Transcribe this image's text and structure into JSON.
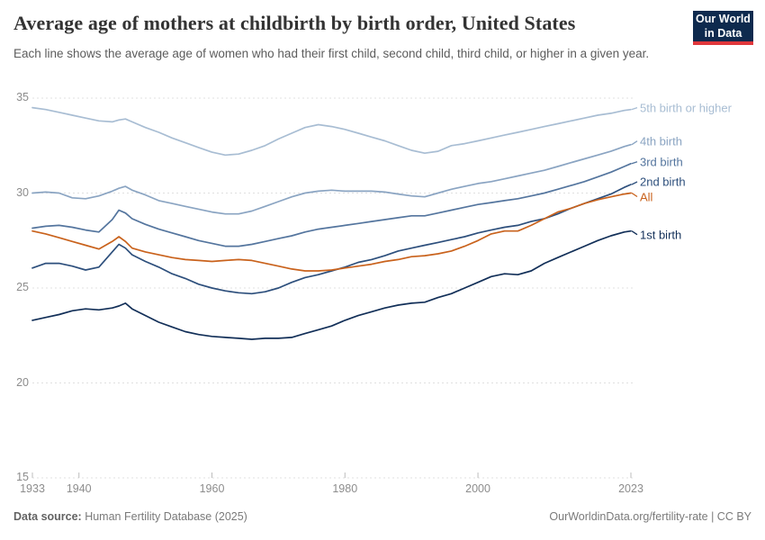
{
  "branding": {
    "logo_line1": "Our World",
    "logo_line2": "in Data"
  },
  "chart_data": {
    "type": "line",
    "title": "Average age of mothers at childbirth by birth order, United States",
    "subtitle": "Each line shows the average age of women who had their first child, second child, third child, or higher in a given year.",
    "xlabel": "",
    "ylabel": "",
    "x_range": [
      1933,
      2023
    ],
    "y_range": [
      15,
      35
    ],
    "x_ticks": [
      1933,
      1940,
      1960,
      1980,
      2000,
      2023
    ],
    "y_ticks": [
      15,
      20,
      25,
      30,
      35
    ],
    "grid": "horizontal-dashed",
    "legend_position": "line-end-labels-right",
    "colors": {
      "grid": "#e0e0e0",
      "tick": "#bdbdbd",
      "axis_text": "#8d8d8d"
    },
    "years": [
      1933,
      1935,
      1937,
      1939,
      1941,
      1943,
      1945,
      1946,
      1947,
      1948,
      1950,
      1952,
      1954,
      1956,
      1958,
      1960,
      1962,
      1964,
      1966,
      1968,
      1970,
      1972,
      1974,
      1976,
      1978,
      1980,
      1982,
      1984,
      1986,
      1988,
      1990,
      1992,
      1994,
      1996,
      1998,
      2000,
      2002,
      2004,
      2006,
      2008,
      2010,
      2012,
      2014,
      2016,
      2018,
      2020,
      2022,
      2023
    ],
    "series": [
      {
        "name": "5th birth or higher",
        "color": "#a8bdd3",
        "values": [
          34.5,
          34.4,
          34.25,
          34.1,
          33.95,
          33.8,
          33.75,
          33.85,
          33.9,
          33.75,
          33.45,
          33.2,
          32.9,
          32.65,
          32.4,
          32.15,
          32.0,
          32.05,
          32.25,
          32.5,
          32.85,
          33.15,
          33.45,
          33.6,
          33.5,
          33.35,
          33.15,
          32.95,
          32.75,
          32.5,
          32.25,
          32.1,
          32.2,
          32.5,
          32.6,
          32.75,
          32.9,
          33.05,
          33.2,
          33.35,
          33.5,
          33.65,
          33.8,
          33.95,
          34.1,
          34.2,
          34.35,
          34.4
        ]
      },
      {
        "name": "4th birth",
        "color": "#8aa4c2",
        "values": [
          30.0,
          30.05,
          30.0,
          29.75,
          29.7,
          29.85,
          30.1,
          30.25,
          30.35,
          30.15,
          29.9,
          29.6,
          29.45,
          29.3,
          29.15,
          29.0,
          28.9,
          28.9,
          29.05,
          29.3,
          29.55,
          29.8,
          30.0,
          30.1,
          30.15,
          30.1,
          30.1,
          30.1,
          30.05,
          29.95,
          29.85,
          29.8,
          30.0,
          30.2,
          30.35,
          30.5,
          30.6,
          30.75,
          30.9,
          31.05,
          31.2,
          31.4,
          31.6,
          31.8,
          32.0,
          32.2,
          32.45,
          32.55
        ]
      },
      {
        "name": "3rd birth",
        "color": "#54759e",
        "values": [
          28.15,
          28.25,
          28.3,
          28.2,
          28.05,
          27.95,
          28.6,
          29.1,
          28.95,
          28.65,
          28.35,
          28.1,
          27.9,
          27.7,
          27.5,
          27.35,
          27.2,
          27.2,
          27.3,
          27.45,
          27.6,
          27.75,
          27.95,
          28.1,
          28.2,
          28.3,
          28.4,
          28.5,
          28.6,
          28.7,
          28.8,
          28.8,
          28.95,
          29.1,
          29.25,
          29.4,
          29.5,
          29.6,
          29.7,
          29.85,
          30.0,
          30.2,
          30.4,
          30.6,
          30.85,
          31.1,
          31.4,
          31.55
        ]
      },
      {
        "name": "2nd birth",
        "color": "#2d4f7c",
        "values": [
          26.05,
          26.3,
          26.3,
          26.15,
          25.95,
          26.1,
          26.9,
          27.3,
          27.1,
          26.75,
          26.4,
          26.1,
          25.75,
          25.5,
          25.2,
          25.0,
          24.85,
          24.75,
          24.7,
          24.8,
          25.0,
          25.3,
          25.55,
          25.7,
          25.9,
          26.1,
          26.35,
          26.5,
          26.7,
          26.95,
          27.1,
          27.25,
          27.4,
          27.55,
          27.7,
          27.9,
          28.05,
          28.2,
          28.3,
          28.5,
          28.65,
          28.9,
          29.2,
          29.45,
          29.7,
          29.95,
          30.3,
          30.45
        ]
      },
      {
        "name": "All",
        "color": "#c9621c",
        "values": [
          28.0,
          27.85,
          27.65,
          27.45,
          27.25,
          27.05,
          27.45,
          27.7,
          27.45,
          27.1,
          26.9,
          26.75,
          26.6,
          26.5,
          26.45,
          26.4,
          26.45,
          26.5,
          26.45,
          26.3,
          26.15,
          26.0,
          25.9,
          25.9,
          25.95,
          26.05,
          26.15,
          26.25,
          26.4,
          26.5,
          26.65,
          26.7,
          26.8,
          26.95,
          27.2,
          27.5,
          27.85,
          28.0,
          28.0,
          28.3,
          28.65,
          29.0,
          29.2,
          29.45,
          29.65,
          29.8,
          29.95,
          30.0
        ]
      },
      {
        "name": "1st birth",
        "color": "#122f58",
        "values": [
          23.3,
          23.45,
          23.6,
          23.8,
          23.9,
          23.85,
          23.95,
          24.05,
          24.2,
          23.9,
          23.55,
          23.2,
          22.95,
          22.7,
          22.55,
          22.45,
          22.4,
          22.35,
          22.3,
          22.35,
          22.35,
          22.4,
          22.6,
          22.8,
          23.0,
          23.3,
          23.55,
          23.75,
          23.95,
          24.1,
          24.2,
          24.25,
          24.5,
          24.7,
          25.0,
          25.3,
          25.6,
          25.75,
          25.7,
          25.9,
          26.3,
          26.6,
          26.9,
          27.2,
          27.5,
          27.75,
          27.95,
          28.0
        ]
      }
    ]
  },
  "footer": {
    "source_label": "Data source:",
    "source_value": " Human Fertility Database (2025)",
    "credit": "OurWorldinData.org/fertility-rate | CC BY"
  }
}
